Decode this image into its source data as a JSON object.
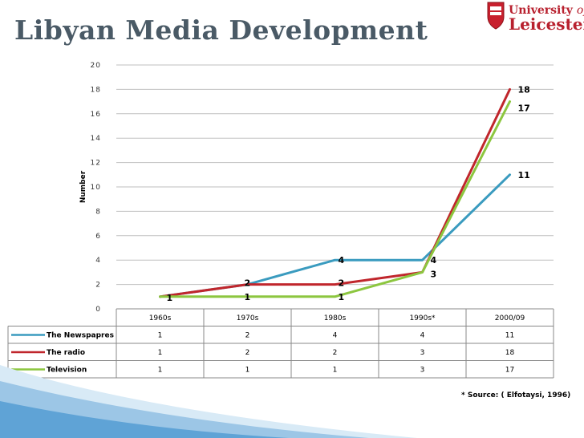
{
  "slide": {
    "title": "Libyan Media Development",
    "source": "* Source: ( Elfotaysi, 1996)"
  },
  "logo": {
    "line1": "University",
    "line1_of": "of",
    "line2": "Leicester",
    "color": "#b8202e"
  },
  "chart_data": {
    "type": "line",
    "categories": [
      "1960s",
      "1970s",
      "1980s",
      "1990s*",
      "2000/09"
    ],
    "ylabel": "Number",
    "xlabel": "",
    "ylim": [
      0,
      20
    ],
    "yticks": [
      0,
      2,
      4,
      6,
      8,
      10,
      12,
      14,
      16,
      18,
      20
    ],
    "grid": true,
    "legend": "data-table",
    "series": [
      {
        "name": "The Newspapres",
        "color": "#3a9bbf",
        "values": [
          1,
          2,
          4,
          4,
          11
        ],
        "labels": [
          "",
          "",
          "4",
          "4",
          "11"
        ]
      },
      {
        "name": "The radio",
        "color": "#c0262c",
        "values": [
          1,
          2,
          2,
          3,
          18
        ],
        "labels": [
          "",
          "2",
          "2",
          "",
          "18"
        ]
      },
      {
        "name": "Television",
        "color": "#8cc63f",
        "values": [
          1,
          1,
          1,
          3,
          17
        ],
        "labels": [
          "1",
          "1",
          "1",
          "3",
          "17"
        ]
      }
    ]
  }
}
